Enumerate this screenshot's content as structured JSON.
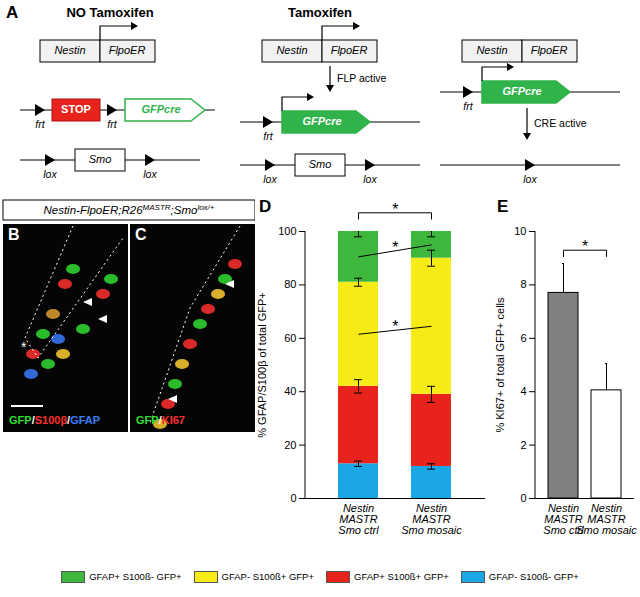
{
  "diagram": {
    "title": "A",
    "headers": [
      "NO Tamoxifen",
      "Tamoxifen"
    ],
    "driver": [
      "Nestin",
      "FlpoER"
    ],
    "stop": "STOP",
    "reporter": "GFPcre",
    "frt": "frt",
    "lox": "lox",
    "gene": "Smo",
    "events": [
      "FLP active",
      "CRE active"
    ]
  },
  "images": {
    "title": [
      "Nestin-FlpoER;R26",
      "MASTR",
      ";Smo",
      "lox/+"
    ],
    "panels": [
      {
        "title": "B",
        "mark": "*",
        "stains": [
          {
            "text": "GFP",
            "color": "#33dd33"
          },
          {
            "text": "/",
            "color": "#ffffff"
          },
          {
            "text": "S100β",
            "color": "#ff3030"
          },
          {
            "text": "/",
            "color": "#ffffff"
          },
          {
            "text": "GFAP",
            "color": "#3a7bff"
          }
        ]
      },
      {
        "title": "C",
        "stains": [
          {
            "text": "GFP",
            "color": "#33dd33"
          },
          {
            "text": "/",
            "color": "#ffffff"
          },
          {
            "text": "KI67",
            "color": "#ff3030"
          }
        ]
      }
    ]
  },
  "chart_data": [
    {
      "type": "bar",
      "title": "D",
      "stacked": true,
      "ylabel": "% GFAP/S100β of total GFP+",
      "categories": [
        "Nestin\nMASTR\nSmo ctrl",
        "Nestin\nMASTR\nSmo mosaic"
      ],
      "series": [
        {
          "name": "GFAP- S100ß- GFP+",
          "color": "#1ba6e6",
          "values": [
            13,
            12
          ],
          "errors": [
            1,
            1
          ]
        },
        {
          "name": "GFAP+ S100ß+ GFP+",
          "color": "#e8231c",
          "values": [
            29,
            27
          ],
          "errors": [
            2.5,
            3
          ]
        },
        {
          "name": "GFAP- S100ß+ GFP+",
          "color": "#f6eb14",
          "values": [
            39,
            51
          ],
          "errors": [
            1.5,
            3
          ]
        },
        {
          "name": "GFAP+ S100ß- GFP+",
          "color": "#3db83d",
          "values": [
            19,
            10
          ],
          "errors": [
            2,
            2
          ]
        }
      ],
      "ylim": [
        0,
        100
      ],
      "yticks": [
        0,
        20,
        40,
        60,
        80,
        100
      ],
      "annotations": [
        "*",
        "*",
        "*"
      ],
      "legend": "bottom"
    },
    {
      "type": "bar",
      "title": "E",
      "ylabel": "% KI67+ of total GFP+ cells",
      "categories": [
        "Nestin\nMASTR\nSmo ctrl",
        "Nestin\nMASTR\nSmo mosaic"
      ],
      "values": [
        7.7,
        4.05
      ],
      "errors": [
        1.1,
        1.0
      ],
      "colors": [
        "#808080",
        "#ffffff"
      ],
      "ylim": [
        0,
        10
      ],
      "yticks": [
        0,
        2,
        4,
        6,
        8,
        10
      ],
      "annotations": [
        "*"
      ]
    }
  ]
}
